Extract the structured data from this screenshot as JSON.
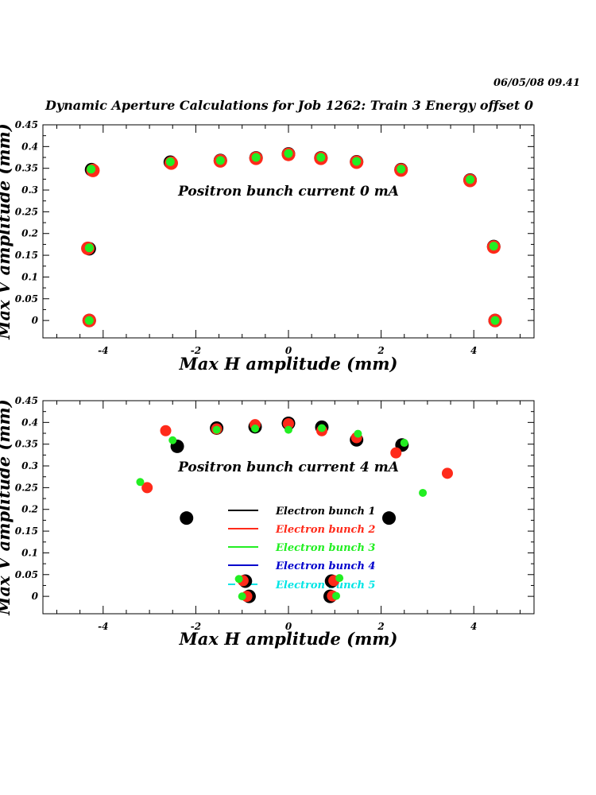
{
  "header": {
    "date_time": "06/05/08   09.41",
    "title": "Dynamic Aperture Calculations for Job 1262:  Train 3   Energy offset  0"
  },
  "colors": {
    "bunch1": "#000000",
    "bunch2": "#ff2a1a",
    "bunch3": "#22ee22",
    "bunch4": "#0000cc",
    "bunch5": "#00e5e5"
  },
  "chart_data": [
    {
      "type": "scatter",
      "annotation": "Positron bunch current  0 mA",
      "xlabel": "Max H amplitude (mm)",
      "ylabel": "Max V amplitude (mm)",
      "xlim": [
        -5.3,
        5.3
      ],
      "ylim": [
        -0.04,
        0.45
      ],
      "xticks": [
        -4,
        -2,
        0,
        2,
        4
      ],
      "yticks": [
        0,
        0.05,
        0.1,
        0.15,
        0.2,
        0.25,
        0.3,
        0.35,
        0.4,
        0.45
      ],
      "legend": null,
      "series": [
        {
          "color_key": "bunch1",
          "size": 8.5,
          "points": [
            [
              -4.3,
              0
            ],
            [
              -4.3,
              0.165
            ],
            [
              -4.25,
              0.347
            ],
            [
              -2.55,
              0.364
            ],
            [
              -1.47,
              0.368
            ],
            [
              -0.7,
              0.374
            ],
            [
              0,
              0.383
            ],
            [
              0.7,
              0.374
            ],
            [
              1.47,
              0.365
            ],
            [
              2.43,
              0.347
            ],
            [
              3.92,
              0.323
            ],
            [
              4.43,
              0.17
            ],
            [
              4.46,
              0
            ]
          ]
        },
        {
          "color_key": "bunch2",
          "size": 8.5,
          "points": [
            [
              -4.3,
              0
            ],
            [
              -4.33,
              0.166
            ],
            [
              -4.22,
              0.345
            ],
            [
              -2.53,
              0.362
            ],
            [
              -1.47,
              0.367
            ],
            [
              -0.7,
              0.373
            ],
            [
              0,
              0.382
            ],
            [
              0.7,
              0.373
            ],
            [
              1.47,
              0.364
            ],
            [
              2.43,
              0.346
            ],
            [
              3.92,
              0.322
            ],
            [
              4.43,
              0.169
            ],
            [
              4.46,
              0
            ]
          ]
        },
        {
          "color_key": "bunch3",
          "size": 5.5,
          "points": [
            [
              -4.3,
              0
            ],
            [
              -4.3,
              0.167
            ],
            [
              -4.26,
              0.348
            ],
            [
              -2.55,
              0.365
            ],
            [
              -1.47,
              0.368
            ],
            [
              -0.7,
              0.375
            ],
            [
              0,
              0.384
            ],
            [
              0.7,
              0.375
            ],
            [
              1.47,
              0.366
            ],
            [
              2.43,
              0.348
            ],
            [
              3.92,
              0.324
            ],
            [
              4.43,
              0.171
            ],
            [
              4.46,
              0
            ]
          ]
        }
      ]
    },
    {
      "type": "scatter",
      "annotation": "Positron bunch current  4 mA",
      "xlabel": "Max H amplitude (mm)",
      "ylabel": "Max V amplitude (mm)",
      "xlim": [
        -5.3,
        5.3
      ],
      "ylim": [
        -0.04,
        0.45
      ],
      "xticks": [
        -4,
        -2,
        0,
        2,
        4
      ],
      "yticks": [
        0,
        0.05,
        0.1,
        0.15,
        0.2,
        0.25,
        0.3,
        0.35,
        0.4,
        0.45
      ],
      "legend": [
        {
          "label": "Electron bunch 1",
          "color_key": "bunch1",
          "dashed": false
        },
        {
          "label": "Electron bunch 2",
          "color_key": "bunch2",
          "dashed": false
        },
        {
          "label": "Electron bunch 3",
          "color_key": "bunch3",
          "dashed": false
        },
        {
          "label": "Electron bunch 4",
          "color_key": "bunch4",
          "dashed": false
        },
        {
          "label": "Electron bunch 5",
          "color_key": "bunch5",
          "dashed": true
        }
      ],
      "series": [
        {
          "color_key": "bunch1",
          "size": 8.5,
          "points": [
            [
              -0.85,
              0
            ],
            [
              -0.93,
              0.035
            ],
            [
              -2.2,
              0.18
            ],
            [
              -2.4,
              0.345
            ],
            [
              -1.55,
              0.387
            ],
            [
              -0.72,
              0.39
            ],
            [
              0,
              0.398
            ],
            [
              0.72,
              0.389
            ],
            [
              1.47,
              0.36
            ],
            [
              2.45,
              0.348
            ],
            [
              2.17,
              0.18
            ],
            [
              0.9,
              0
            ],
            [
              0.93,
              0.035
            ]
          ]
        },
        {
          "color_key": "bunch2",
          "size": 7,
          "points": [
            [
              -0.9,
              0
            ],
            [
              -0.98,
              0.036
            ],
            [
              -3.05,
              0.25
            ],
            [
              -2.65,
              0.381
            ],
            [
              -1.55,
              0.385
            ],
            [
              -0.72,
              0.395
            ],
            [
              0,
              0.397
            ],
            [
              0.72,
              0.381
            ],
            [
              1.47,
              0.365
            ],
            [
              2.32,
              0.33
            ],
            [
              3.43,
              0.283
            ],
            [
              0.95,
              0.001
            ],
            [
              0.98,
              0.036
            ]
          ]
        },
        {
          "color_key": "bunch3",
          "size": 5,
          "points": [
            [
              -1.0,
              0
            ],
            [
              -1.07,
              0.04
            ],
            [
              -3.2,
              0.263
            ],
            [
              -2.5,
              0.359
            ],
            [
              -1.55,
              0.383
            ],
            [
              -0.72,
              0.386
            ],
            [
              0,
              0.383
            ],
            [
              0.72,
              0.387
            ],
            [
              1.5,
              0.374
            ],
            [
              2.5,
              0.353
            ],
            [
              2.9,
              0.238
            ],
            [
              1.03,
              0.001
            ],
            [
              1.1,
              0.042
            ]
          ]
        }
      ]
    }
  ]
}
